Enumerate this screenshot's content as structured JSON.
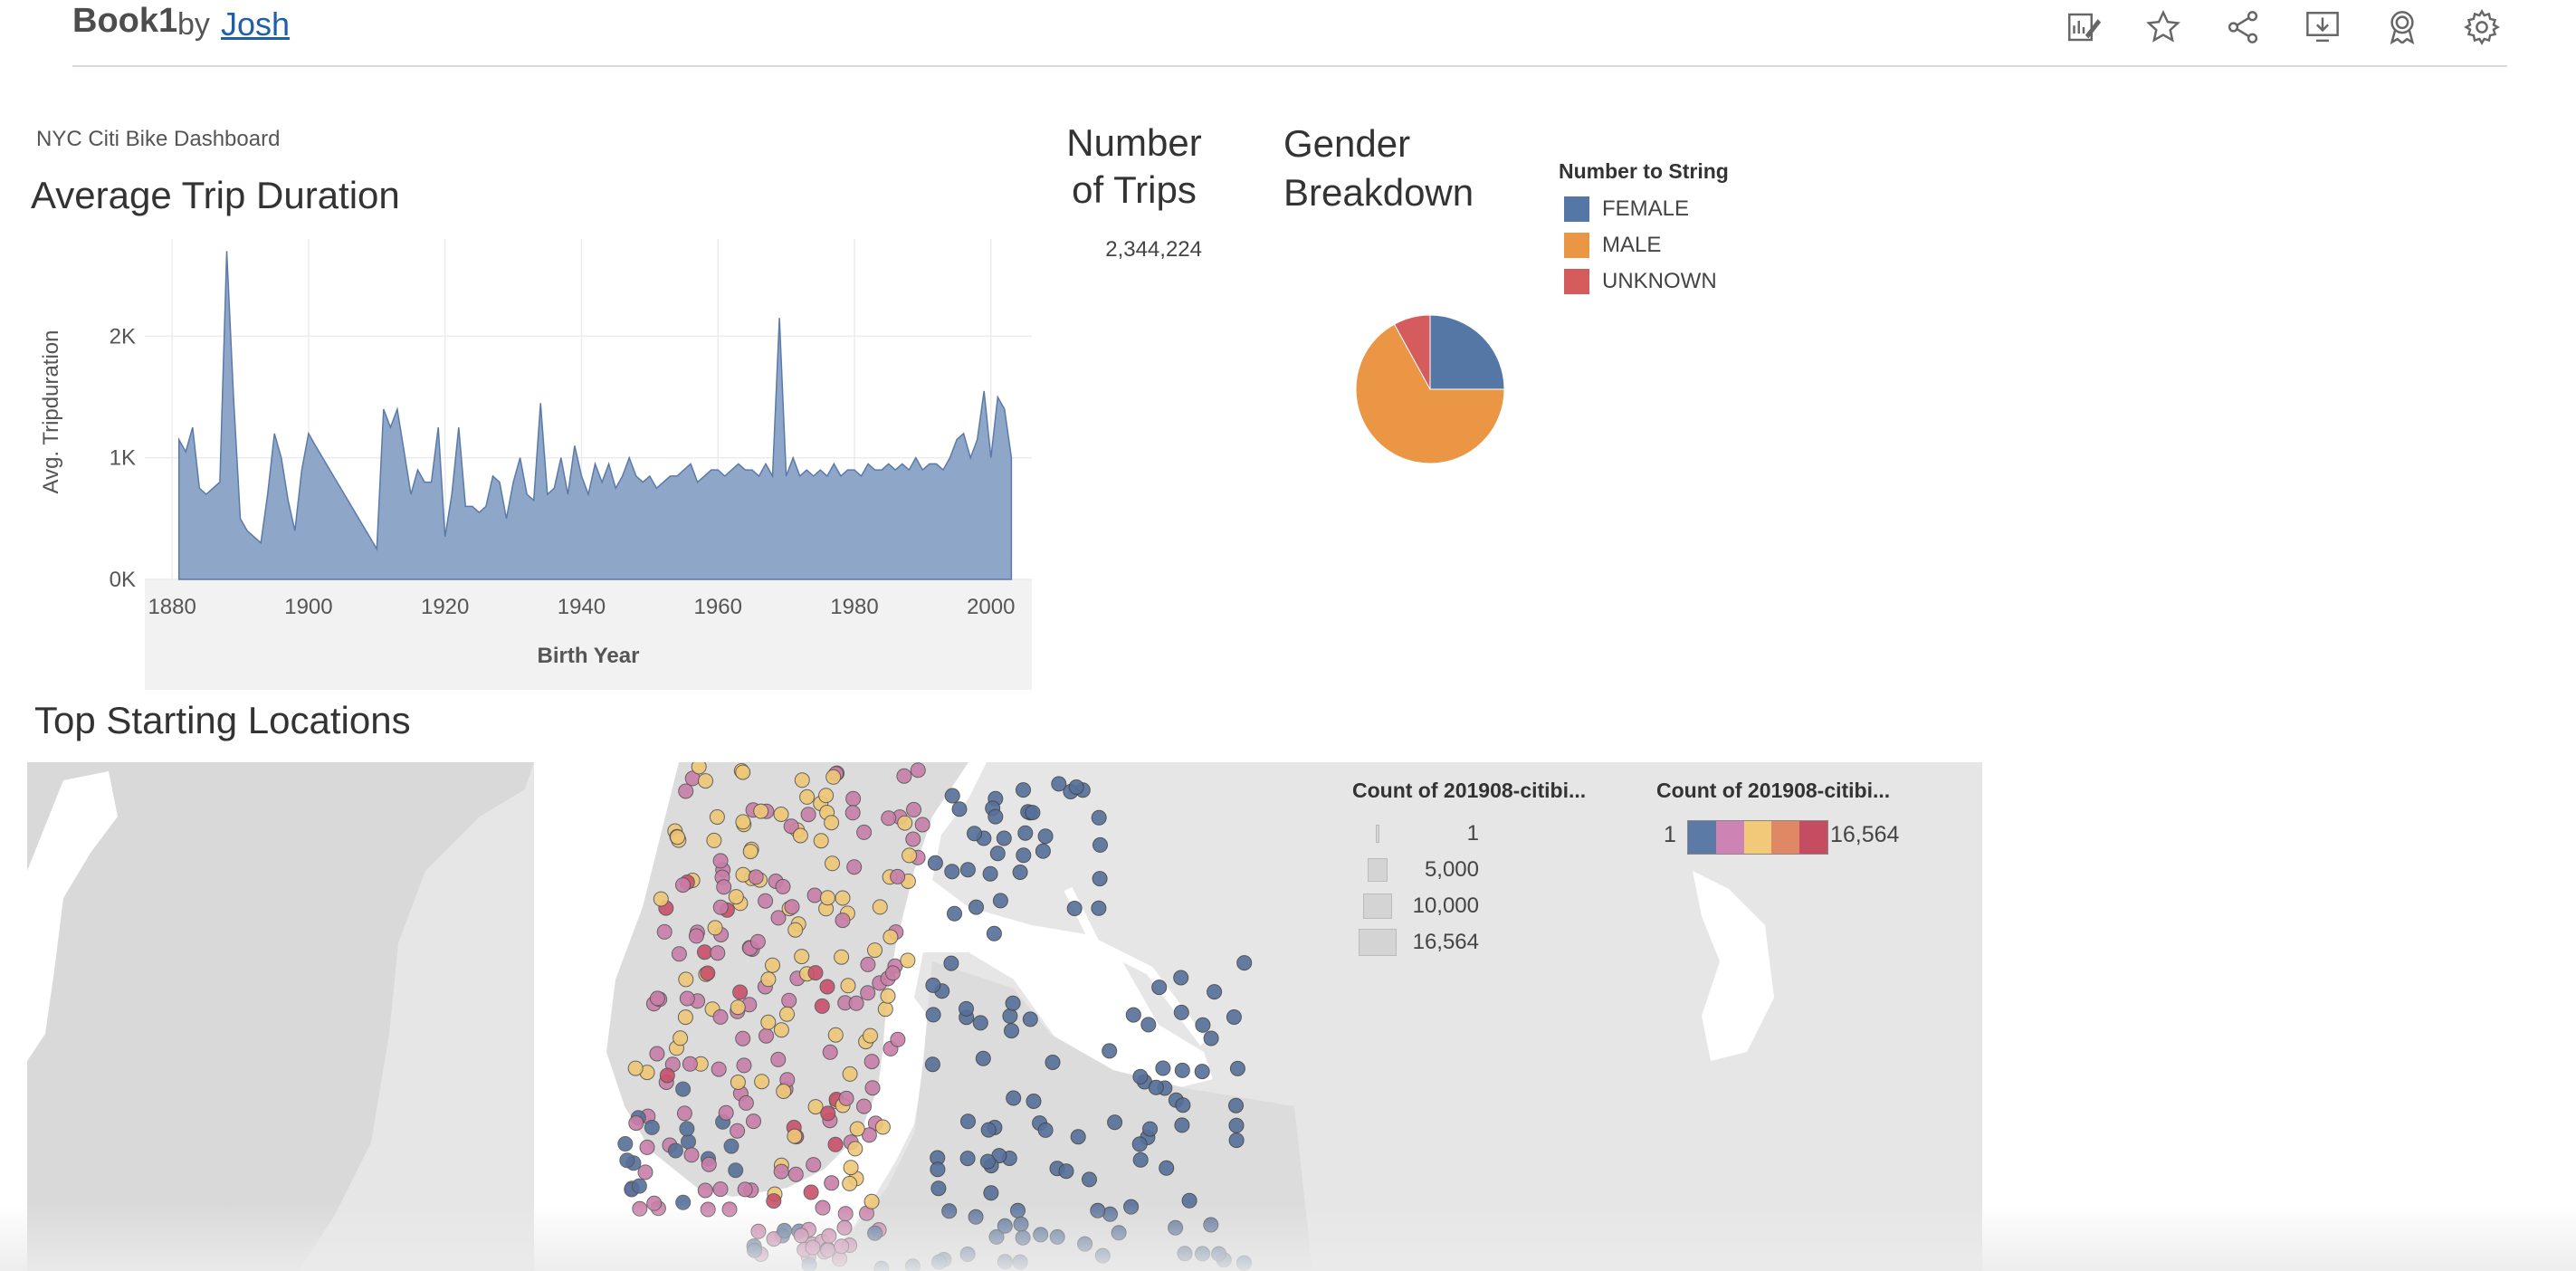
{
  "header": {
    "workbook_title": "Book1",
    "by_label": "by",
    "author": "Josh",
    "icons": [
      "edit-icon",
      "star-icon",
      "share-icon",
      "download-icon",
      "badge-icon",
      "settings-icon"
    ]
  },
  "dashboard": {
    "label": "NYC Citi Bike Dashboard"
  },
  "sheets": {
    "avg_trip_title": "Average Trip Duration",
    "trips_title": "Number of Trips",
    "trips_value": "2,344,224",
    "gender_title": "Gender Breakdown",
    "map_title": "Top Starting Locations"
  },
  "chart_data": [
    {
      "type": "area",
      "title": "Average Trip Duration",
      "xlabel": "Birth Year",
      "ylabel": "Avg. Tripduration",
      "x_ticks": [
        "1880",
        "1900",
        "1920",
        "1940",
        "1960",
        "1980",
        "2000"
      ],
      "y_ticks": [
        "0K",
        "1K",
        "2K"
      ],
      "xlim": [
        1876,
        2006
      ],
      "ylim": [
        0,
        2800
      ],
      "color": "#8ea6c8",
      "stroke": "#5b7aa9",
      "grid": true,
      "x": [
        1881,
        1882,
        1883,
        1884,
        1885,
        1887,
        1888,
        1889,
        1890,
        1891,
        1893,
        1894,
        1895,
        1896,
        1897,
        1898,
        1899,
        1900,
        1901,
        1910,
        1911,
        1912,
        1913,
        1914,
        1915,
        1916,
        1917,
        1918,
        1919,
        1920,
        1921,
        1922,
        1923,
        1924,
        1925,
        1926,
        1927,
        1928,
        1929,
        1930,
        1931,
        1932,
        1933,
        1934,
        1935,
        1936,
        1937,
        1938,
        1939,
        1940,
        1941,
        1942,
        1943,
        1944,
        1945,
        1946,
        1947,
        1948,
        1949,
        1950,
        1951,
        1952,
        1953,
        1954,
        1955,
        1956,
        1957,
        1958,
        1959,
        1960,
        1961,
        1962,
        1963,
        1964,
        1965,
        1966,
        1967,
        1968,
        1969,
        1970,
        1971,
        1972,
        1973,
        1974,
        1975,
        1976,
        1977,
        1978,
        1979,
        1980,
        1981,
        1982,
        1983,
        1984,
        1985,
        1986,
        1987,
        1988,
        1989,
        1990,
        1991,
        1992,
        1993,
        1994,
        1995,
        1996,
        1997,
        1998,
        1999,
        2000,
        2001,
        2002,
        2003
      ],
      "y": [
        1150,
        1050,
        1250,
        750,
        700,
        800,
        2700,
        1500,
        500,
        400,
        300,
        700,
        1200,
        1000,
        650,
        400,
        900,
        1200,
        1100,
        250,
        1400,
        1250,
        1400,
        1050,
        700,
        900,
        800,
        800,
        1250,
        350,
        700,
        1250,
        600,
        600,
        550,
        600,
        850,
        800,
        500,
        800,
        1000,
        700,
        650,
        1450,
        700,
        750,
        1000,
        700,
        1100,
        850,
        700,
        950,
        800,
        950,
        750,
        850,
        1000,
        850,
        800,
        850,
        750,
        800,
        850,
        850,
        900,
        950,
        800,
        850,
        900,
        900,
        850,
        900,
        950,
        900,
        900,
        850,
        950,
        850,
        2150,
        850,
        1000,
        850,
        900,
        850,
        900,
        850,
        950,
        850,
        900,
        900,
        850,
        950,
        900,
        900,
        950,
        900,
        950,
        900,
        1000,
        900,
        950,
        950,
        900,
        1000,
        1150,
        1200,
        1000,
        1150,
        1550,
        1000,
        1500,
        1400,
        1000
      ]
    },
    {
      "type": "pie",
      "title": "Gender Breakdown",
      "legend_title": "Number to String",
      "categories": [
        "FEMALE",
        "MALE",
        "UNKNOWN"
      ],
      "values": [
        25,
        67,
        8
      ],
      "colors": [
        "#5577a6",
        "#ea9645",
        "#d65b5d"
      ]
    }
  ],
  "map": {
    "size_legend_title": "Count of 201908-citibi...",
    "size_legend": [
      "1",
      "5,000",
      "10,000",
      "16,564"
    ],
    "color_legend_title": "Count of 201908-citibi...",
    "color_min": "1",
    "color_max": "16,564",
    "color_ramp": [
      "#5b7aa5",
      "#cd83b3",
      "#f1c978",
      "#e08766",
      "#c44d62"
    ],
    "point_colors": {
      "blue": "#56709a",
      "pink": "#c97ea8",
      "yellow": "#efc877",
      "red": "#c9506a"
    }
  }
}
